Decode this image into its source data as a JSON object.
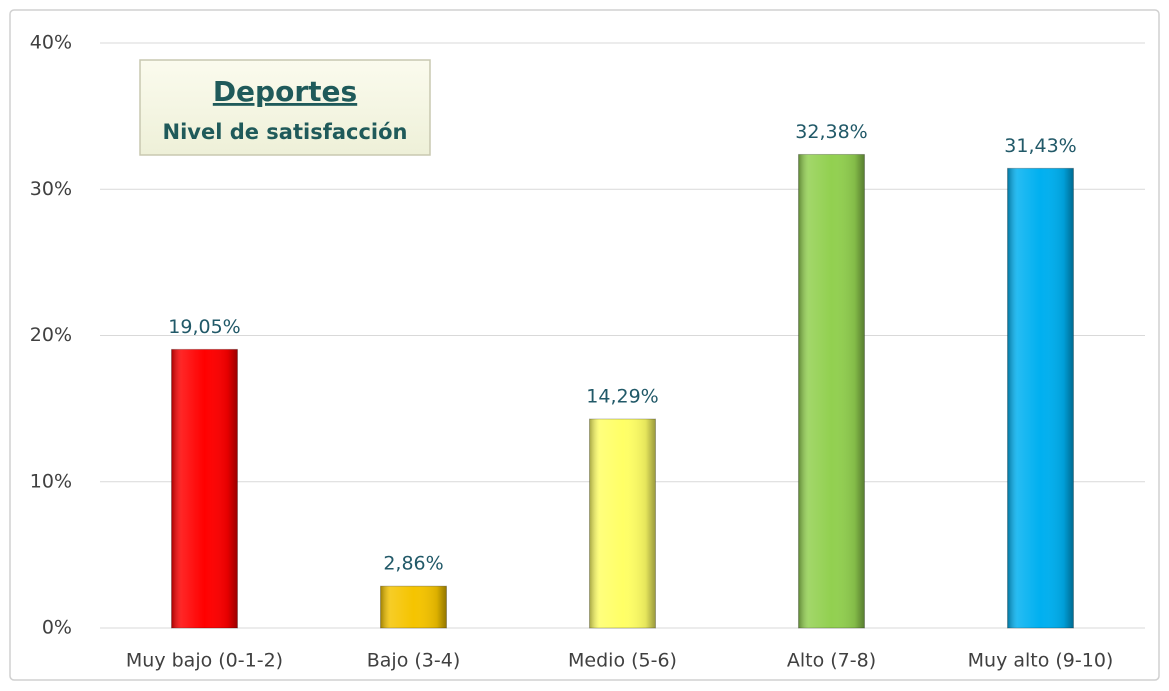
{
  "chart_data": {
    "type": "bar",
    "title": "Deportes",
    "subtitle": "Nivel de satisfacción",
    "categories": [
      "Muy bajo (0-1-2)",
      "Bajo (3-4)",
      "Medio (5-6)",
      "Alto (7-8)",
      "Muy alto (9-10)"
    ],
    "values": [
      19.05,
      2.86,
      14.29,
      32.38,
      31.43
    ],
    "value_labels": [
      "19,05%",
      "2,86%",
      "14,29%",
      "32,38%",
      "31,43%"
    ],
    "colors": [
      "#ff0000",
      "#f5c400",
      "#ffff66",
      "#92d050",
      "#00b0f0"
    ],
    "ylim": [
      0,
      40
    ],
    "yticks": [
      {
        "value": 0,
        "label": "0%"
      },
      {
        "value": 10,
        "label": "10%"
      },
      {
        "value": 20,
        "label": "20%"
      },
      {
        "value": 30,
        "label": "30%"
      },
      {
        "value": 40,
        "label": "40%"
      }
    ],
    "grid": true
  }
}
